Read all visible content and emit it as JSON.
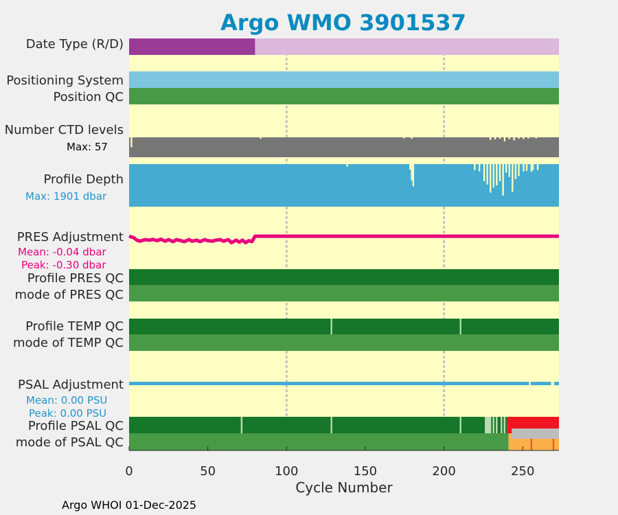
{
  "chart_data": {
    "type": "heatmap",
    "title": "Argo WMO 3901537",
    "xlabel": "Cycle Number",
    "xlim": [
      0,
      273
    ],
    "xticks": [
      "0",
      "50",
      "100",
      "150",
      "200",
      "250"
    ],
    "xtick_values": [
      0,
      50,
      100,
      150,
      200,
      250
    ],
    "gridlines_x": [
      100,
      200
    ],
    "footer": "Argo WHOI 01-Dec-2025",
    "colors": {
      "title": "#0b8bbf",
      "background": "#ffffc4",
      "purple": "#9b3b98",
      "light_purple": "#dcb8dc",
      "sky_blue": "#7ec6e0",
      "qc_green": "#489a46",
      "dark_green": "#167629",
      "pale_green": "#b8dcb0",
      "gray": "#767676",
      "light_gray": "#bdbdbd",
      "depth_blue": "#45abd0",
      "magenta": "#e8007e",
      "psal_blue": "#43aad5",
      "red": "#f01520",
      "orange": "#fbb04a",
      "orange_red": "#ec5a2a"
    },
    "labels": {
      "date_type": "Date Type (R/D)",
      "positioning_system": "Positioning System",
      "position_qc": "Position QC",
      "ctd_levels": "Number CTD levels",
      "ctd_max": "Max: 57",
      "profile_depth": "Profile Depth",
      "depth_max": "Max: 1901 dbar",
      "pres_adjustment": "PRES Adjustment",
      "pres_mean": "Mean: -0.04 dbar",
      "pres_peak": "Peak: -0.30 dbar",
      "profile_pres_qc": "Profile PRES QC",
      "mode_pres_qc": "mode of PRES QC",
      "profile_temp_qc": "Profile TEMP QC",
      "mode_temp_qc": "mode of TEMP QC",
      "psal_adjustment": "PSAL Adjustment",
      "psal_mean": "Mean: 0.00 PSU",
      "psal_peak": "Peak: 0.00 PSU",
      "profile_psal_qc": "Profile PSAL QC",
      "mode_psal_qc": "mode of PSAL QC"
    },
    "date_type": [
      {
        "from": 0,
        "to": 80,
        "value": "R"
      },
      {
        "from": 80,
        "to": 273,
        "value": "D"
      }
    ],
    "ctd_levels_max": 57,
    "ctd_level_dips": [
      {
        "cycle": 1,
        "fraction": 0.5
      },
      {
        "cycle": 83,
        "fraction": 0.93
      },
      {
        "cycle": 174,
        "fraction": 0.95
      },
      {
        "cycle": 179,
        "fraction": 0.93
      },
      {
        "cycle": 229,
        "fraction": 0.87
      },
      {
        "cycle": 232,
        "fraction": 0.9
      },
      {
        "cycle": 235,
        "fraction": 0.93
      },
      {
        "cycle": 238,
        "fraction": 0.8
      },
      {
        "cycle": 241,
        "fraction": 0.9
      },
      {
        "cycle": 244,
        "fraction": 0.85
      },
      {
        "cycle": 247,
        "fraction": 0.93
      },
      {
        "cycle": 250,
        "fraction": 0.91
      },
      {
        "cycle": 253,
        "fraction": 0.94
      },
      {
        "cycle": 258,
        "fraction": 0.95
      }
    ],
    "depth_max_dbar": 1901,
    "depth_dips": [
      {
        "cycle": 138,
        "fraction": 0.94
      },
      {
        "cycle": 178,
        "fraction": 0.87
      },
      {
        "cycle": 179,
        "fraction": 0.62
      },
      {
        "cycle": 180,
        "fraction": 0.48
      },
      {
        "cycle": 219,
        "fraction": 0.86
      },
      {
        "cycle": 222,
        "fraction": 0.83
      },
      {
        "cycle": 225,
        "fraction": 0.6
      },
      {
        "cycle": 227,
        "fraction": 0.52
      },
      {
        "cycle": 229,
        "fraction": 0.33
      },
      {
        "cycle": 231,
        "fraction": 0.45
      },
      {
        "cycle": 233,
        "fraction": 0.5
      },
      {
        "cycle": 235,
        "fraction": 0.6
      },
      {
        "cycle": 237,
        "fraction": 0.26
      },
      {
        "cycle": 239,
        "fraction": 0.8
      },
      {
        "cycle": 241,
        "fraction": 0.7
      },
      {
        "cycle": 243,
        "fraction": 0.35
      },
      {
        "cycle": 245,
        "fraction": 0.65
      },
      {
        "cycle": 247,
        "fraction": 0.72
      },
      {
        "cycle": 250,
        "fraction": 0.83
      },
      {
        "cycle": 252,
        "fraction": 0.84
      },
      {
        "cycle": 255,
        "fraction": 0.82
      },
      {
        "cycle": 256,
        "fraction": 0.86
      },
      {
        "cycle": 259,
        "fraction": 0.86
      }
    ],
    "pres_adjustment": {
      "unit": "dbar",
      "mean": -0.04,
      "peak": -0.3,
      "values": [
        [
          0,
          -0.04
        ],
        [
          3,
          -0.1
        ],
        [
          5,
          -0.2
        ],
        [
          7,
          -0.24
        ],
        [
          10,
          -0.18
        ],
        [
          13,
          -0.2
        ],
        [
          15,
          -0.17
        ],
        [
          18,
          -0.22
        ],
        [
          20,
          -0.16
        ],
        [
          23,
          -0.24
        ],
        [
          25,
          -0.18
        ],
        [
          28,
          -0.26
        ],
        [
          30,
          -0.18
        ],
        [
          33,
          -0.22
        ],
        [
          35,
          -0.26
        ],
        [
          38,
          -0.18
        ],
        [
          40,
          -0.24
        ],
        [
          43,
          -0.2
        ],
        [
          45,
          -0.26
        ],
        [
          48,
          -0.18
        ],
        [
          50,
          -0.22
        ],
        [
          53,
          -0.24
        ],
        [
          55,
          -0.2
        ],
        [
          58,
          -0.18
        ],
        [
          60,
          -0.24
        ],
        [
          63,
          -0.18
        ],
        [
          65,
          -0.3
        ],
        [
          68,
          -0.2
        ],
        [
          70,
          -0.28
        ],
        [
          72,
          -0.2
        ],
        [
          74,
          -0.3
        ],
        [
          76,
          -0.22
        ],
        [
          78,
          -0.26
        ],
        [
          80,
          -0.04
        ],
        [
          273,
          -0.04
        ]
      ]
    },
    "psal_adjustment": {
      "unit": "PSU",
      "mean": 0.0,
      "peak": 0.0,
      "gaps": [
        {
          "from": 254,
          "to": 255
        },
        {
          "from": 268,
          "to": 270
        }
      ]
    },
    "profile_temp_qc_breaks": [
      128,
      210
    ],
    "profile_psal_qc": [
      {
        "from": 0,
        "to": 71,
        "flag": "A"
      },
      {
        "from": 71,
        "to": 72,
        "flag": "B"
      },
      {
        "from": 72,
        "to": 128,
        "flag": "A"
      },
      {
        "from": 128,
        "to": 129,
        "flag": "B"
      },
      {
        "from": 129,
        "to": 210,
        "flag": "A"
      },
      {
        "from": 210,
        "to": 211,
        "flag": "B"
      },
      {
        "from": 211,
        "to": 226,
        "flag": "A"
      },
      {
        "from": 226,
        "to": 230,
        "flag": "B"
      },
      {
        "from": 230,
        "to": 231,
        "flag": "A"
      },
      {
        "from": 231,
        "to": 232,
        "flag": "B"
      },
      {
        "from": 232,
        "to": 233,
        "flag": "A"
      },
      {
        "from": 233,
        "to": 234,
        "flag": "B"
      },
      {
        "from": 234,
        "to": 236,
        "flag": "A"
      },
      {
        "from": 236,
        "to": 237,
        "flag": "B"
      },
      {
        "from": 237,
        "to": 238,
        "flag": "A"
      },
      {
        "from": 238,
        "to": 239,
        "flag": "B"
      },
      {
        "from": 239,
        "to": 240,
        "flag": "A"
      },
      {
        "from": 240,
        "to": 273,
        "flag": "F"
      }
    ],
    "mode_psal_qc": [
      {
        "from": 0,
        "to": 241,
        "qc": 1
      },
      {
        "from": 241,
        "to": 273,
        "qc": 3,
        "marks": [
          255,
          269
        ]
      }
    ],
    "mode_psal_qc_gray_band": {
      "from": 243,
      "to": 273
    }
  }
}
